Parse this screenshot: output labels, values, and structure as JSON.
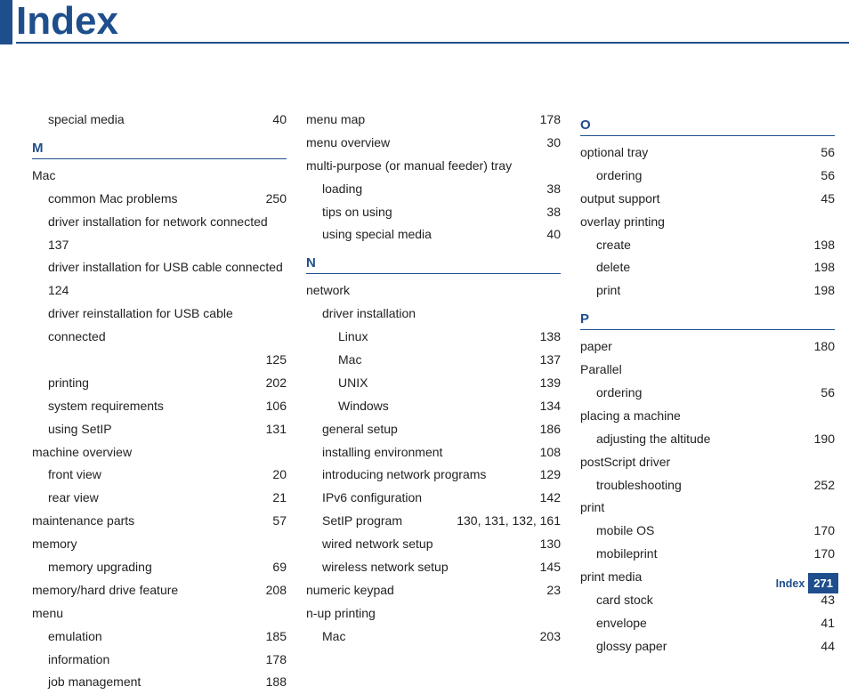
{
  "title": "Index",
  "footer": {
    "label": "Index",
    "page": "271"
  },
  "columns": [
    {
      "groups": [
        {
          "entries": [
            {
              "indent": 1,
              "term": "special media",
              "page": "40"
            }
          ]
        },
        {
          "letter": "M",
          "entries": [
            {
              "indent": 0,
              "term": "Mac",
              "page": ""
            },
            {
              "indent": 1,
              "term": "common Mac problems",
              "page": "250"
            },
            {
              "indent": 1,
              "term": "driver installation for network connected",
              "page": "",
              "wrap": true
            },
            {
              "indent": 1,
              "term": "137",
              "page": ""
            },
            {
              "indent": 1,
              "term": "driver installation for USB cable connected",
              "page": "",
              "wrap": true
            },
            {
              "indent": 1,
              "term": "124",
              "page": ""
            },
            {
              "indent": 1,
              "term": "driver reinstallation for USB cable connected",
              "page": "",
              "wrap": true
            },
            {
              "indent": 1,
              "term": "",
              "page": "125"
            },
            {
              "indent": 1,
              "term": "printing",
              "page": "202"
            },
            {
              "indent": 1,
              "term": "system requirements",
              "page": "106"
            },
            {
              "indent": 1,
              "term": "using SetIP",
              "page": "131"
            },
            {
              "indent": 0,
              "term": "machine overview",
              "page": ""
            },
            {
              "indent": 1,
              "term": "front view",
              "page": "20"
            },
            {
              "indent": 1,
              "term": "rear view",
              "page": "21"
            },
            {
              "indent": 0,
              "term": "maintenance parts",
              "page": "57"
            },
            {
              "indent": 0,
              "term": "memory",
              "page": ""
            },
            {
              "indent": 1,
              "term": "memory upgrading",
              "page": "69"
            },
            {
              "indent": 0,
              "term": "memory/hard drive feature",
              "page": "208"
            },
            {
              "indent": 0,
              "term": "menu",
              "page": ""
            },
            {
              "indent": 1,
              "term": "emulation",
              "page": "185"
            },
            {
              "indent": 1,
              "term": "information",
              "page": "178"
            },
            {
              "indent": 1,
              "term": "job management",
              "page": "188"
            }
          ]
        }
      ]
    },
    {
      "groups": [
        {
          "entries": [
            {
              "indent": 0,
              "term": "menu map",
              "page": "178"
            },
            {
              "indent": 0,
              "term": "menu overview",
              "page": "30"
            },
            {
              "indent": 0,
              "term": "multi-purpose (or manual feeder) tray",
              "page": ""
            },
            {
              "indent": 1,
              "term": "loading",
              "page": "38"
            },
            {
              "indent": 1,
              "term": "tips on using",
              "page": "38"
            },
            {
              "indent": 1,
              "term": "using special media",
              "page": "40"
            }
          ]
        },
        {
          "letter": "N",
          "entries": [
            {
              "indent": 0,
              "term": "network",
              "page": ""
            },
            {
              "indent": 1,
              "term": "driver installation",
              "page": ""
            },
            {
              "indent": 2,
              "term": "Linux",
              "page": "138"
            },
            {
              "indent": 2,
              "term": "Mac",
              "page": "137"
            },
            {
              "indent": 2,
              "term": "UNIX",
              "page": "139"
            },
            {
              "indent": 2,
              "term": "Windows",
              "page": "134"
            },
            {
              "indent": 1,
              "term": "general setup",
              "page": "186"
            },
            {
              "indent": 1,
              "term": "installing environment",
              "page": "108"
            },
            {
              "indent": 1,
              "term": "introducing network programs",
              "page": "129"
            },
            {
              "indent": 1,
              "term": "IPv6 configuration",
              "page": "142"
            },
            {
              "indent": 1,
              "term": "SetIP program",
              "page": "130,  131,  132,  161"
            },
            {
              "indent": 1,
              "term": "wired network setup",
              "page": "130"
            },
            {
              "indent": 1,
              "term": "wireless network setup",
              "page": "145"
            },
            {
              "indent": 0,
              "term": "numeric keypad",
              "page": "23"
            },
            {
              "indent": 0,
              "term": "n-up printing",
              "page": ""
            },
            {
              "indent": 1,
              "term": "Mac",
              "page": "203"
            }
          ]
        }
      ]
    },
    {
      "groups": [
        {
          "letter": "O",
          "entries": [
            {
              "indent": 0,
              "term": "optional tray",
              "page": "56"
            },
            {
              "indent": 1,
              "term": "ordering",
              "page": "56"
            },
            {
              "indent": 0,
              "term": "output support",
              "page": "45"
            },
            {
              "indent": 0,
              "term": "overlay printing",
              "page": ""
            },
            {
              "indent": 1,
              "term": "create",
              "page": "198"
            },
            {
              "indent": 1,
              "term": "delete",
              "page": "198"
            },
            {
              "indent": 1,
              "term": "print",
              "page": "198"
            }
          ]
        },
        {
          "letter": "P",
          "entries": [
            {
              "indent": 0,
              "term": "paper",
              "page": "180"
            },
            {
              "indent": 0,
              "term": "Parallel",
              "page": ""
            },
            {
              "indent": 1,
              "term": "ordering",
              "page": "56"
            },
            {
              "indent": 0,
              "term": "placing a machine",
              "page": ""
            },
            {
              "indent": 1,
              "term": "adjusting the altitude",
              "page": "190"
            },
            {
              "indent": 0,
              "term": "postScript driver",
              "page": ""
            },
            {
              "indent": 1,
              "term": "troubleshooting",
              "page": "252"
            },
            {
              "indent": 0,
              "term": "print",
              "page": ""
            },
            {
              "indent": 1,
              "term": "mobile OS",
              "page": "170"
            },
            {
              "indent": 1,
              "term": "mobileprint",
              "page": "170"
            },
            {
              "indent": 0,
              "term": "print media",
              "page": ""
            },
            {
              "indent": 1,
              "term": "card stock",
              "page": "43"
            },
            {
              "indent": 1,
              "term": "envelope",
              "page": "41"
            },
            {
              "indent": 1,
              "term": "glossy paper",
              "page": "44"
            }
          ]
        }
      ]
    }
  ]
}
